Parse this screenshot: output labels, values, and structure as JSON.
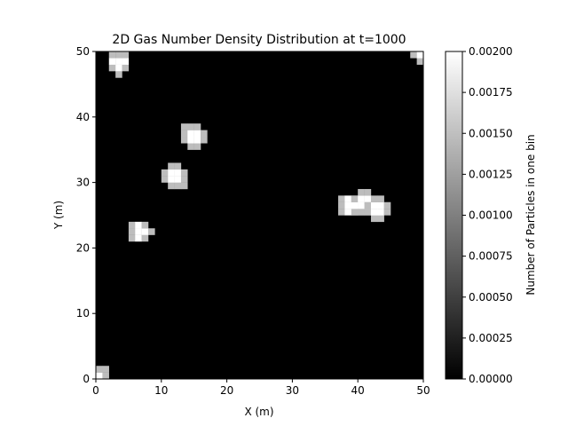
{
  "chart_data": {
    "type": "heatmap",
    "title": "2D Gas Number Density Distribution at t=1000",
    "xlabel": "X (m)",
    "ylabel": "Y (m)",
    "xlim": [
      0,
      50
    ],
    "ylim": [
      0,
      50
    ],
    "x_ticks": [
      "0",
      "10",
      "20",
      "30",
      "40",
      "50"
    ],
    "y_ticks": [
      "0",
      "10",
      "20",
      "30",
      "40",
      "50"
    ],
    "grid": false,
    "colormap": "gray",
    "background_value": 0.0,
    "blobs": [
      {
        "x": 3.6,
        "y": 48.3,
        "r": 1.5
      },
      {
        "x": 14.8,
        "y": 37.2,
        "r": 1.5
      },
      {
        "x": 12.2,
        "y": 30.8,
        "r": 1.5
      },
      {
        "x": 6.7,
        "y": 22.4,
        "r": 1.5
      },
      {
        "x": 38.9,
        "y": 26.4,
        "r": 1.5
      },
      {
        "x": 40.6,
        "y": 26.9,
        "r": 1.5
      },
      {
        "x": 43.2,
        "y": 25.9,
        "r": 1.5
      },
      {
        "x": 50.0,
        "y": 50.0,
        "r": 1.5
      },
      {
        "x": 0.0,
        "y": 0.0,
        "r": 1.8
      }
    ],
    "blob_value": 0.002,
    "colorbar": {
      "label": "Number of Particles in one bin",
      "range": [
        0,
        0.002
      ],
      "ticks": [
        "0.00000",
        "0.00025",
        "0.00050",
        "0.00075",
        "0.00100",
        "0.00125",
        "0.00150",
        "0.00175",
        "0.00200"
      ]
    }
  }
}
